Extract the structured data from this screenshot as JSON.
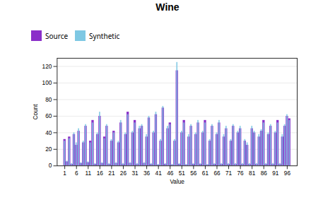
{
  "chart_data": {
    "type": "bar",
    "title": "Wine",
    "xlabel": "Value",
    "ylabel": "Count",
    "categories": [
      "1",
      null,
      null,
      null,
      null,
      "6",
      null,
      null,
      null,
      null,
      "11",
      null,
      null,
      null,
      null,
      "16",
      null,
      null,
      null,
      null,
      "21",
      null,
      null,
      null,
      null,
      "26",
      null,
      null,
      null,
      null,
      "31",
      null,
      null,
      null,
      null,
      "36",
      null,
      null,
      null,
      null,
      "41",
      null,
      null,
      null,
      null,
      "46",
      null,
      null,
      null,
      null,
      "51",
      null,
      null,
      null,
      null,
      "56",
      null,
      null,
      null,
      null,
      "61",
      null,
      null,
      null,
      null,
      "66",
      null,
      null,
      null,
      null,
      "71",
      null,
      null,
      null,
      null,
      "76",
      null,
      null,
      null,
      null,
      "81",
      null,
      null,
      null,
      null,
      "86",
      null,
      null,
      null,
      null,
      "91",
      null,
      null,
      null,
      null,
      "96",
      null
    ],
    "series": [
      {
        "name": "Source",
        "color": "#8B2FC9",
        "values": [
          32,
          5,
          35,
          2,
          38,
          25,
          42,
          3,
          28,
          48,
          4,
          30,
          55,
          2,
          38,
          60,
          3,
          35,
          48,
          2,
          30,
          42,
          3,
          28,
          52,
          2,
          38,
          65,
          3,
          40,
          55,
          2,
          45,
          48,
          3,
          35,
          58,
          2,
          40,
          62,
          1,
          30,
          70,
          2,
          45,
          52,
          1,
          30,
          115,
          2,
          40,
          55,
          1,
          35,
          48,
          2,
          38,
          52,
          2,
          40,
          55,
          1,
          30,
          48,
          2,
          38,
          52,
          2,
          35,
          45,
          2,
          30,
          48,
          2,
          40,
          45,
          2,
          30,
          25,
          2,
          45,
          40,
          2,
          35,
          42,
          55,
          2,
          38,
          48,
          2,
          40,
          55,
          2,
          35,
          48,
          60,
          57
        ]
      },
      {
        "name": "Synthetic",
        "color": "#7EC8E3",
        "values": [
          30,
          6,
          33,
          3,
          40,
          28,
          45,
          4,
          30,
          50,
          5,
          28,
          52,
          3,
          40,
          65,
          4,
          33,
          50,
          3,
          32,
          40,
          4,
          30,
          55,
          3,
          40,
          62,
          4,
          42,
          52,
          3,
          48,
          50,
          4,
          38,
          60,
          3,
          42,
          65,
          2,
          32,
          72,
          3,
          48,
          50,
          2,
          32,
          125,
          3,
          42,
          52,
          2,
          38,
          50,
          3,
          40,
          55,
          3,
          42,
          52,
          2,
          32,
          50,
          3,
          40,
          55,
          3,
          38,
          48,
          3,
          32,
          50,
          3,
          42,
          48,
          3,
          32,
          28,
          3,
          48,
          42,
          3,
          38,
          44,
          52,
          3,
          40,
          50,
          3,
          42,
          52,
          3,
          38,
          50,
          62,
          55
        ]
      }
    ],
    "ylim": [
      0,
      130
    ],
    "yticks": [
      0,
      20,
      40,
      60,
      80,
      100,
      120
    ],
    "grid": true
  }
}
